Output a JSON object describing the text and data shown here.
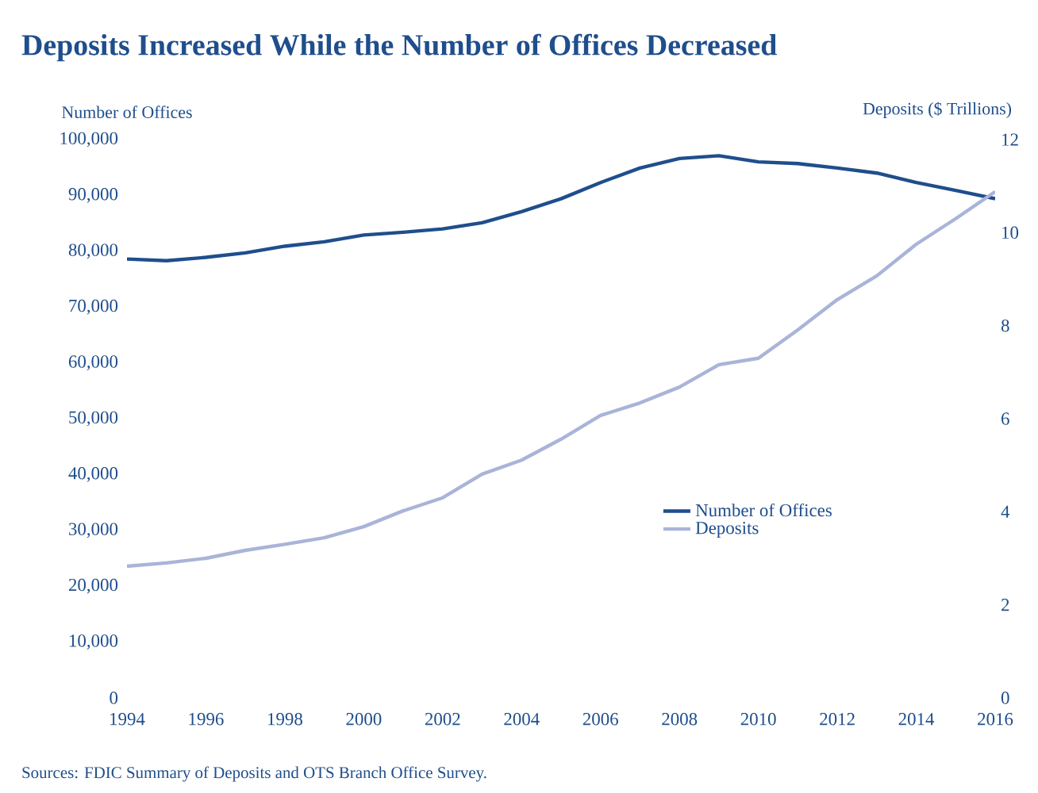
{
  "chart_data": {
    "type": "line",
    "title": "Deposits Increased While the Number of Offices Decreased",
    "ylabel": "Number of Offices",
    "y2label": "Deposits ($ Trillions)",
    "x": [
      1994,
      1995,
      1996,
      1997,
      1998,
      1999,
      2000,
      2001,
      2002,
      2003,
      2004,
      2005,
      2006,
      2007,
      2008,
      2009,
      2010,
      2011,
      2012,
      2013,
      2014,
      2015,
      2016
    ],
    "series": [
      {
        "name": "Number of Offices",
        "color": "#1f4e8c",
        "axis": "y",
        "values": [
          78600,
          78300,
          78900,
          79700,
          80900,
          81700,
          82900,
          83400,
          84000,
          85100,
          87100,
          89400,
          92300,
          94900,
          96600,
          97100,
          96000,
          95700,
          94900,
          94000,
          92300,
          90900,
          89400
        ]
      },
      {
        "name": "Deposits",
        "color": "#a9b4d8",
        "axis": "y2",
        "values": [
          2.83,
          2.9,
          3.0,
          3.17,
          3.3,
          3.44,
          3.68,
          4.02,
          4.3,
          4.81,
          5.11,
          5.56,
          6.07,
          6.34,
          6.68,
          7.16,
          7.3,
          7.91,
          8.56,
          9.07,
          9.75,
          10.3,
          10.88
        ]
      }
    ],
    "xlim": [
      1994,
      2016
    ],
    "xticks": [
      1994,
      1996,
      1998,
      2000,
      2002,
      2004,
      2006,
      2008,
      2010,
      2012,
      2014,
      2016
    ],
    "ylim": [
      0,
      100000
    ],
    "yticks": [
      {
        "value": 0,
        "label": "0"
      },
      {
        "value": 10000,
        "label": "10,000"
      },
      {
        "value": 20000,
        "label": "20,000"
      },
      {
        "value": 30000,
        "label": "30,000"
      },
      {
        "value": 40000,
        "label": "40,000"
      },
      {
        "value": 50000,
        "label": "50,000"
      },
      {
        "value": 60000,
        "label": "60,000"
      },
      {
        "value": 70000,
        "label": "70,000"
      },
      {
        "value": 80000,
        "label": "80,000"
      },
      {
        "value": 90000,
        "label": "90,000"
      },
      {
        "value": 100000,
        "label": "100,000"
      }
    ],
    "y2lim": [
      0,
      12
    ],
    "y2ticks": [
      0,
      2,
      4,
      6,
      8,
      10,
      12
    ],
    "legend": "right",
    "grid": false,
    "marker": "none",
    "line_style": "solid",
    "annotations": [
      "Sources: FDIC Summary of Deposits and OTS Branch Office Survey."
    ]
  }
}
